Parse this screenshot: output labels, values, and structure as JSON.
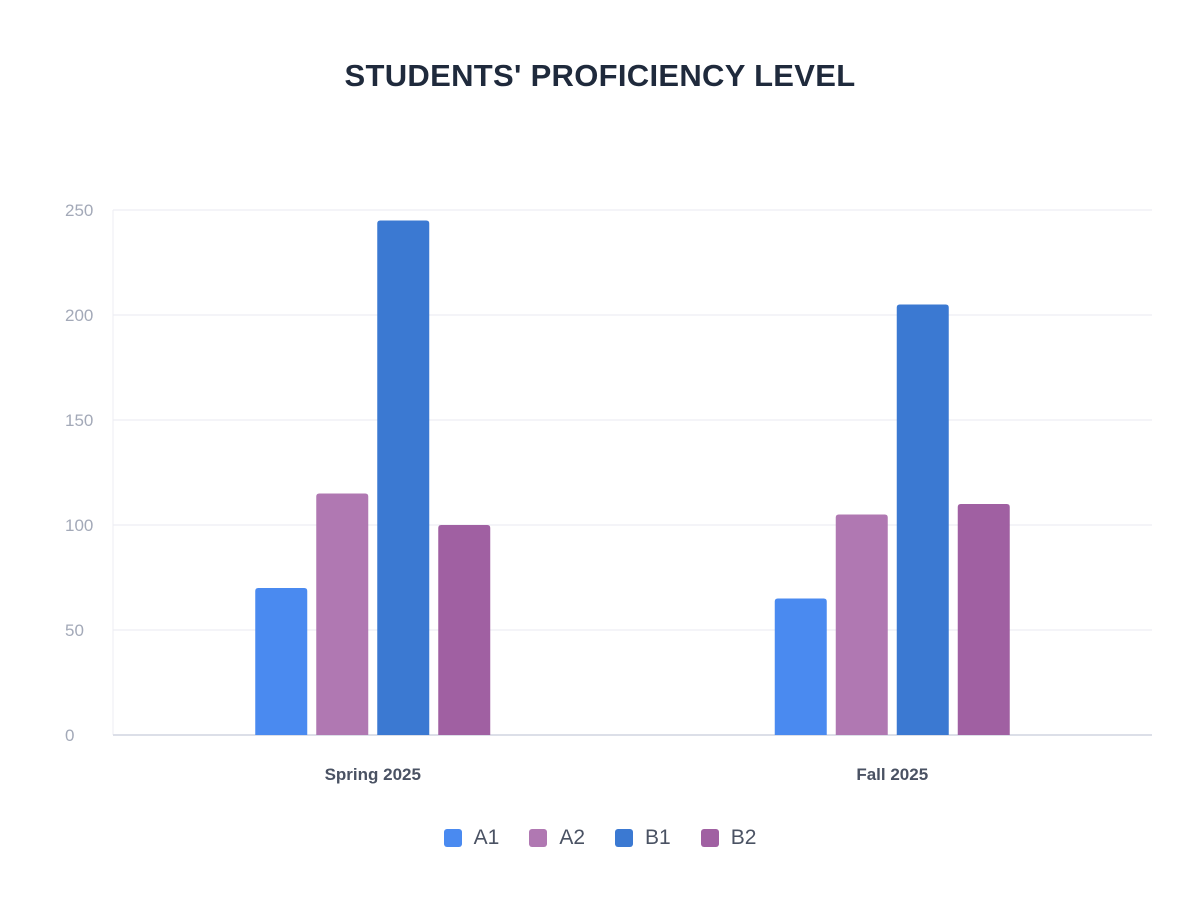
{
  "chart_data": {
    "type": "bar",
    "title": "STUDENTS' PROFICIENCY LEVEL",
    "xlabel": "",
    "ylabel": "",
    "categories": [
      "Spring 2025",
      "Fall 2025"
    ],
    "series": [
      {
        "name": "A1",
        "values": [
          70,
          65
        ],
        "color": "#4a8af0"
      },
      {
        "name": "A2",
        "values": [
          115,
          105
        ],
        "color": "#b078b2"
      },
      {
        "name": "B1",
        "values": [
          245,
          205
        ],
        "color": "#3b79d2"
      },
      {
        "name": "B2",
        "values": [
          100,
          110
        ],
        "color": "#a060a2"
      }
    ],
    "ylim": [
      0,
      250
    ],
    "yticks": [
      0,
      50,
      100,
      150,
      200,
      250
    ],
    "grid": true,
    "legend": "bottom-center"
  }
}
